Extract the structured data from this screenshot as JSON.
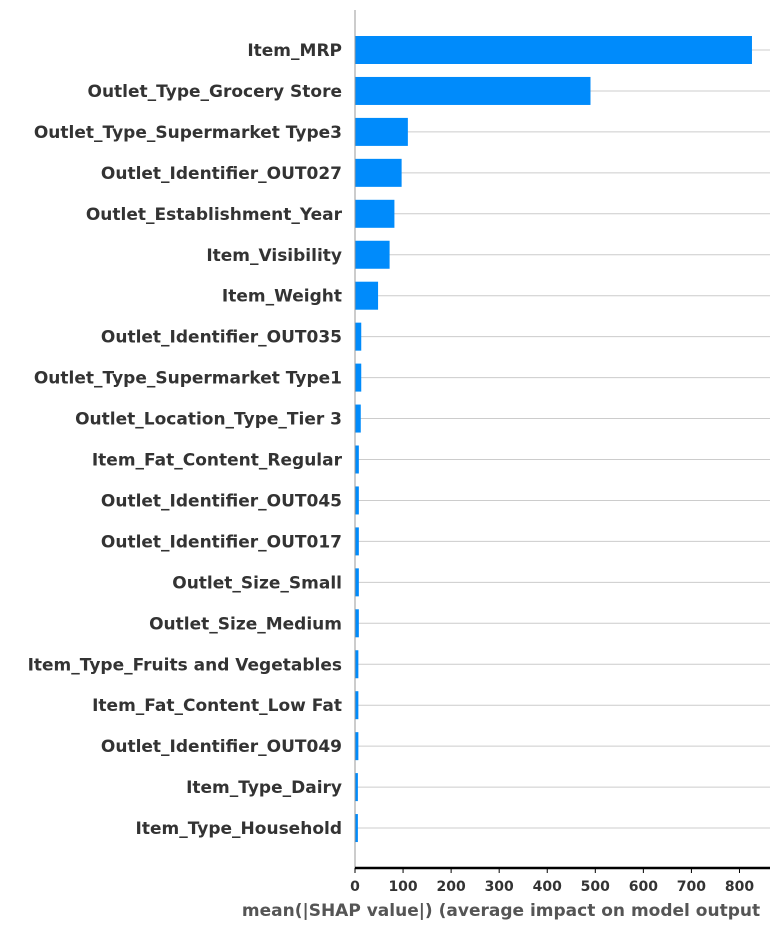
{
  "colors": {
    "bar": "#008bfb",
    "gridline": "#cccccc",
    "axis": "#000000",
    "left_spine": "#999999"
  },
  "chart_data": {
    "type": "bar",
    "orientation": "horizontal",
    "categories": [
      "Item_MRP",
      "Outlet_Type_Grocery Store",
      "Outlet_Type_Supermarket Type3",
      "Outlet_Identifier_OUT027",
      "Outlet_Establishment_Year",
      "Item_Visibility",
      "Item_Weight",
      "Outlet_Identifier_OUT035",
      "Outlet_Type_Supermarket Type1",
      "Outlet_Location_Type_Tier 3",
      "Item_Fat_Content_Regular",
      "Outlet_Identifier_OUT045",
      "Outlet_Identifier_OUT017",
      "Outlet_Size_Small",
      "Outlet_Size_Medium",
      "Item_Type_Fruits and Vegetables",
      "Item_Fat_Content_Low Fat",
      "Outlet_Identifier_OUT049",
      "Item_Type_Dairy",
      "Item_Type_Household"
    ],
    "values": [
      826,
      490,
      110,
      97,
      82,
      72,
      48,
      13,
      13,
      12,
      8,
      8,
      8,
      8,
      8,
      7,
      7,
      7,
      6,
      6
    ],
    "xlabel": "mean(|SHAP value|) (average impact on model output",
    "xlim": [
      0,
      860
    ],
    "xticks": [
      0,
      100,
      200,
      300,
      400,
      500,
      600,
      700,
      800
    ],
    "grid": "horizontal lines per feature row"
  }
}
